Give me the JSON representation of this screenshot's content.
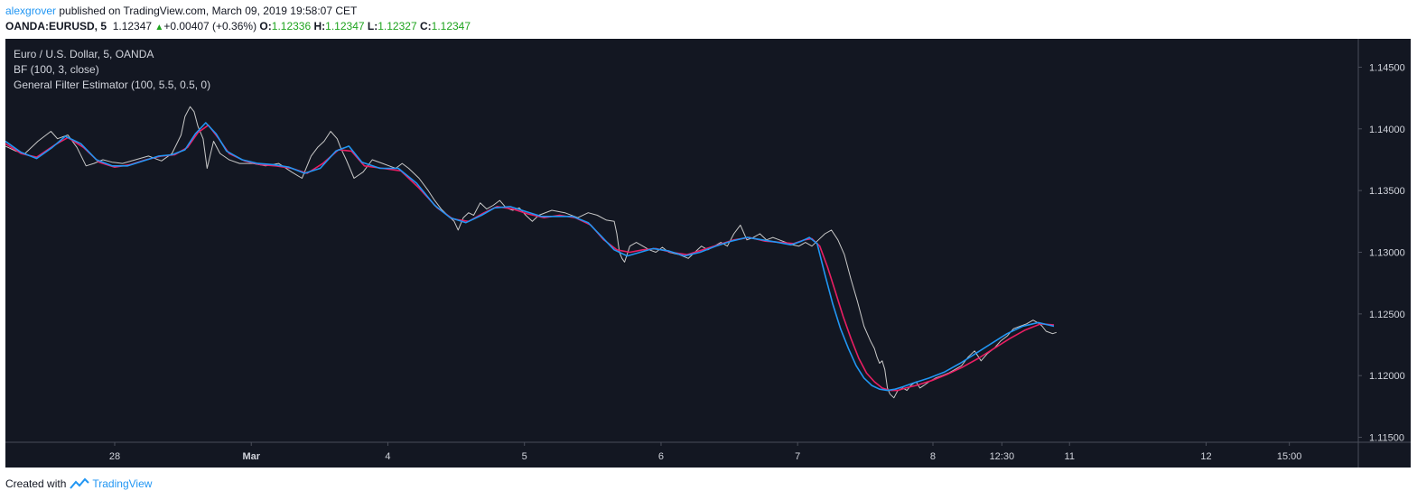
{
  "header": {
    "author": "alexgrover",
    "published_text": " published on TradingView.com, March 09, 2019 19:58:07 CET",
    "symbol": "OANDA:EURUSD, 5",
    "last": "1.12347",
    "change": "+0.00407 (+0.36%)",
    "o_label": "O:",
    "o_value": "1.12336",
    "h_label": "H:",
    "h_value": "1.12347",
    "l_label": "L:",
    "l_value": "1.12327",
    "c_label": "C:",
    "c_value": "1.12347"
  },
  "legend": {
    "title": "Euro / U.S. Dollar, 5, OANDA",
    "line1": "BF (100, 3, close)",
    "line2": "General Filter Estimator (100, 5.5, 0.5, 0)"
  },
  "footer": {
    "created": "Created with",
    "brand": "TradingView"
  },
  "colors": {
    "background": "#131722",
    "price": "#c8c8c8",
    "bf": "#e91e63",
    "gfe": "#2196f3",
    "text": "#d1d4dc",
    "green": "#1ea31e"
  },
  "chart_data": {
    "type": "line",
    "ylim": [
      1.1146,
      1.1473
    ],
    "xlim": [
      0,
      1040
    ],
    "y_ticks": [
      "1.14500",
      "1.14000",
      "1.13500",
      "1.13000",
      "1.12500",
      "1.12000",
      "1.11500"
    ],
    "y_tick_values": [
      1.145,
      1.14,
      1.135,
      1.13,
      1.125,
      1.12,
      1.115
    ],
    "x_ticks": [
      {
        "label": "28",
        "x": 84
      },
      {
        "label": "Mar",
        "x": 189
      },
      {
        "label": "4",
        "x": 294
      },
      {
        "label": "5",
        "x": 399
      },
      {
        "label": "6",
        "x": 504
      },
      {
        "label": "7",
        "x": 609
      },
      {
        "label": "8",
        "x": 713
      },
      {
        "label": "12:30",
        "x": 766
      },
      {
        "label": "11",
        "x": 818
      },
      {
        "label": "12",
        "x": 923
      },
      {
        "label": "15:00",
        "x": 987
      }
    ],
    "series": [
      {
        "key": "price",
        "x": [
          0,
          8,
          15,
          25,
          35,
          40,
          48,
          55,
          62,
          68,
          75,
          82,
          90,
          100,
          110,
          120,
          128,
          135,
          138,
          142,
          145,
          148,
          152,
          155,
          160,
          165,
          172,
          180,
          190,
          200,
          210,
          220,
          228,
          235,
          240,
          245,
          250,
          255,
          258,
          262,
          268,
          275,
          282,
          290,
          295,
          300,
          305,
          310,
          318,
          325,
          330,
          335,
          340,
          345,
          348,
          352,
          356,
          360,
          365,
          370,
          375,
          380,
          385,
          390,
          395,
          400,
          405,
          410,
          420,
          430,
          440,
          448,
          455,
          462,
          468,
          470,
          472,
          474,
          476,
          480,
          485,
          490,
          495,
          500,
          505,
          510,
          518,
          525,
          530,
          535,
          540,
          545,
          550,
          555,
          560,
          565,
          570,
          575,
          580,
          585,
          590,
          595,
          600,
          605,
          610,
          615,
          620,
          625,
          630,
          635,
          640,
          645,
          650,
          655,
          660,
          665,
          668,
          670,
          672,
          674,
          676,
          678,
          680,
          683,
          686,
          690,
          693,
          696,
          700,
          703,
          706,
          710,
          715,
          720,
          725,
          730,
          735,
          740,
          745,
          750,
          755,
          760,
          765,
          770,
          775,
          780,
          785,
          790,
          795,
          797,
          800,
          805,
          808
        ],
        "y": [
          1.1386,
          1.1382,
          1.138,
          1.139,
          1.1398,
          1.1392,
          1.1395,
          1.1385,
          1.137,
          1.1372,
          1.1375,
          1.1373,
          1.1372,
          1.1375,
          1.1378,
          1.1374,
          1.138,
          1.1395,
          1.141,
          1.1418,
          1.1414,
          1.1402,
          1.1392,
          1.1368,
          1.139,
          1.138,
          1.1375,
          1.1372,
          1.1372,
          1.137,
          1.1372,
          1.1365,
          1.136,
          1.1378,
          1.1385,
          1.139,
          1.1398,
          1.1392,
          1.1384,
          1.1375,
          1.136,
          1.1365,
          1.1375,
          1.1372,
          1.137,
          1.1368,
          1.1372,
          1.1368,
          1.136,
          1.135,
          1.1342,
          1.1335,
          1.133,
          1.1325,
          1.1318,
          1.1328,
          1.1332,
          1.133,
          1.134,
          1.1335,
          1.1338,
          1.1342,
          1.1336,
          1.1334,
          1.1336,
          1.133,
          1.1325,
          1.133,
          1.1334,
          1.1332,
          1.1328,
          1.1332,
          1.133,
          1.1326,
          1.1325,
          1.1315,
          1.13,
          1.1295,
          1.1292,
          1.1305,
          1.1308,
          1.1305,
          1.1302,
          1.13,
          1.1304,
          1.13,
          1.1298,
          1.1295,
          1.13,
          1.1305,
          1.1302,
          1.1305,
          1.1308,
          1.1305,
          1.1315,
          1.1322,
          1.131,
          1.1312,
          1.1315,
          1.131,
          1.1312,
          1.131,
          1.1308,
          1.1306,
          1.1305,
          1.1308,
          1.1305,
          1.131,
          1.1315,
          1.1318,
          1.131,
          1.1298,
          1.1278,
          1.126,
          1.124,
          1.1228,
          1.1222,
          1.1215,
          1.121,
          1.1212,
          1.1205,
          1.119,
          1.1185,
          1.1182,
          1.1188,
          1.119,
          1.1188,
          1.1192,
          1.1195,
          1.119,
          1.1192,
          1.1195,
          1.1198,
          1.12,
          1.1202,
          1.1205,
          1.1208,
          1.1215,
          1.122,
          1.1212,
          1.1218,
          1.1222,
          1.1228,
          1.1232,
          1.1238,
          1.124,
          1.1242,
          1.1245,
          1.1242,
          1.124,
          1.1236,
          1.1234,
          1.1235
        ]
      },
      {
        "key": "bf",
        "x": [
          0,
          12,
          24,
          38,
          48,
          60,
          72,
          84,
          96,
          108,
          120,
          130,
          140,
          148,
          156,
          164,
          172,
          184,
          196,
          208,
          220,
          232,
          244,
          256,
          266,
          276,
          290,
          304,
          318,
          332,
          344,
          356,
          368,
          378,
          390,
          402,
          414,
          426,
          438,
          450,
          460,
          470,
          480,
          490,
          500,
          512,
          524,
          536,
          548,
          560,
          572,
          584,
          596,
          606,
          614,
          620,
          626,
          632,
          638,
          644,
          650,
          656,
          662,
          668,
          674,
          680,
          686,
          692,
          700,
          712,
          724,
          736,
          748,
          760,
          772,
          784,
          796,
          806
        ],
        "y": [
          1.1388,
          1.138,
          1.1377,
          1.1387,
          1.1393,
          1.1385,
          1.1373,
          1.1369,
          1.1371,
          1.1375,
          1.1378,
          1.1379,
          1.1385,
          1.1397,
          1.1403,
          1.1392,
          1.138,
          1.1374,
          1.1371,
          1.137,
          1.1368,
          1.1364,
          1.1372,
          1.1383,
          1.1382,
          1.137,
          1.1368,
          1.1366,
          1.1352,
          1.1336,
          1.1327,
          1.1325,
          1.1332,
          1.1337,
          1.1335,
          1.1331,
          1.1328,
          1.133,
          1.1328,
          1.1322,
          1.131,
          1.1302,
          1.13,
          1.1302,
          1.1303,
          1.13,
          1.1298,
          1.1302,
          1.1306,
          1.131,
          1.1312,
          1.1309,
          1.1308,
          1.1307,
          1.131,
          1.1311,
          1.1305,
          1.1288,
          1.1268,
          1.1248,
          1.123,
          1.1214,
          1.1202,
          1.1195,
          1.119,
          1.1188,
          1.1188,
          1.119,
          1.1192,
          1.1196,
          1.1201,
          1.1207,
          1.1214,
          1.1222,
          1.123,
          1.1237,
          1.1242,
          1.1241
        ]
      },
      {
        "key": "gfe",
        "x": [
          0,
          12,
          24,
          36,
          46,
          58,
          70,
          82,
          94,
          106,
          118,
          128,
          138,
          146,
          154,
          162,
          170,
          182,
          194,
          206,
          218,
          230,
          242,
          254,
          264,
          274,
          288,
          302,
          316,
          330,
          342,
          354,
          366,
          376,
          388,
          400,
          412,
          424,
          436,
          448,
          458,
          468,
          478,
          488,
          498,
          510,
          522,
          534,
          546,
          558,
          570,
          582,
          594,
          604,
          612,
          618,
          624,
          630,
          636,
          642,
          648,
          654,
          660,
          666,
          672,
          678,
          684,
          690,
          698,
          710,
          722,
          734,
          746,
          758,
          770,
          782,
          794,
          806
        ],
        "y": [
          1.139,
          1.1381,
          1.1376,
          1.1385,
          1.1394,
          1.1388,
          1.1375,
          1.137,
          1.137,
          1.1374,
          1.1378,
          1.1379,
          1.1383,
          1.1396,
          1.1405,
          1.1396,
          1.1382,
          1.1375,
          1.1372,
          1.1371,
          1.1369,
          1.1364,
          1.1368,
          1.1382,
          1.1386,
          1.1373,
          1.1368,
          1.1368,
          1.1356,
          1.1338,
          1.1328,
          1.1324,
          1.133,
          1.1336,
          1.1337,
          1.1333,
          1.1329,
          1.1329,
          1.1329,
          1.1324,
          1.1313,
          1.1302,
          1.1297,
          1.13,
          1.1303,
          1.1301,
          1.1297,
          1.13,
          1.1305,
          1.1309,
          1.1312,
          1.131,
          1.1308,
          1.1306,
          1.1309,
          1.1312,
          1.1307,
          1.1282,
          1.1258,
          1.1238,
          1.1222,
          1.1208,
          1.1198,
          1.1192,
          1.1189,
          1.1188,
          1.1189,
          1.1191,
          1.1194,
          1.1198,
          1.1203,
          1.121,
          1.1218,
          1.1226,
          1.1234,
          1.124,
          1.1243,
          1.124
        ]
      }
    ]
  }
}
